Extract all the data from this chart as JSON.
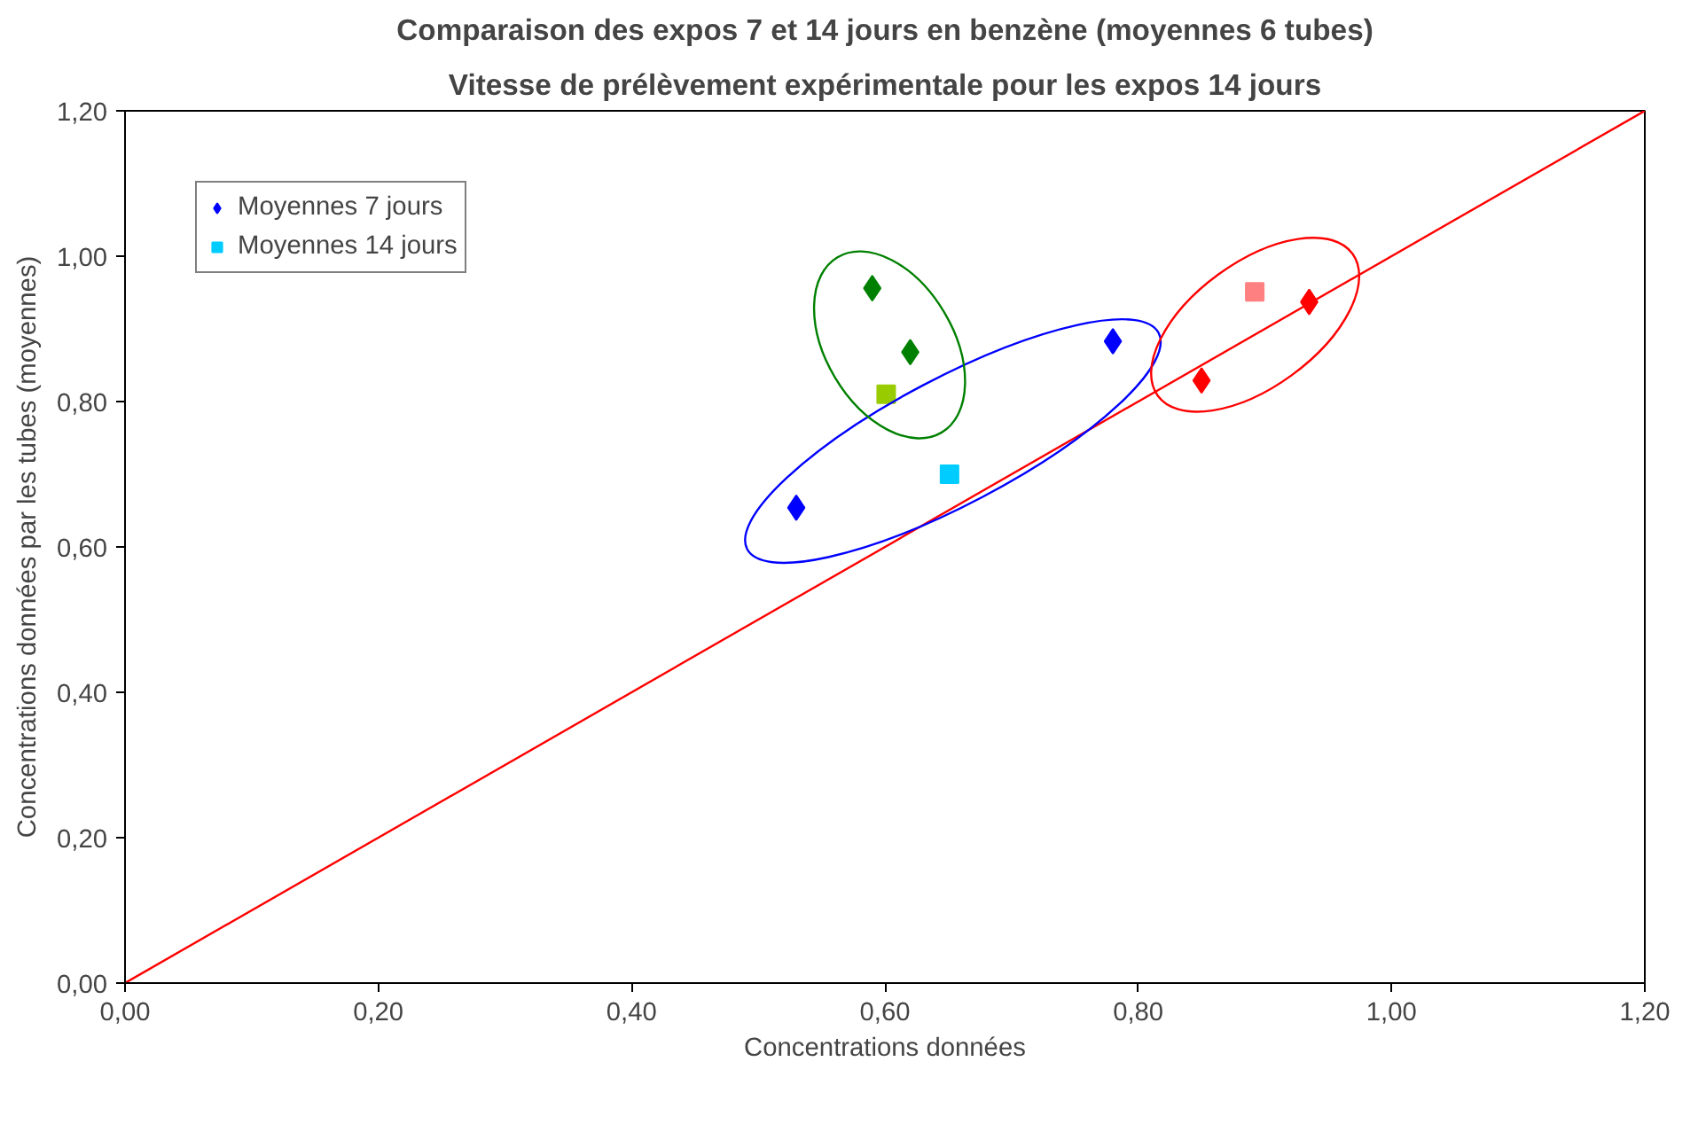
{
  "chart_data": {
    "type": "scatter",
    "title": "Comparaison des expos 7 et 14 jours en benzène (moyennes 6 tubes)",
    "subtitle": "Vitesse de prélèvement expérimentale pour les expos 14 jours",
    "xlabel": "Concentrations données",
    "ylabel": "Concentrations données par les tubes (moyennes)",
    "xlim": [
      0,
      1.2
    ],
    "ylim": [
      0,
      1.2
    ],
    "xticks": [
      {
        "value": 0,
        "label": "0,00"
      },
      {
        "value": 0.2,
        "label": "0,20"
      },
      {
        "value": 0.4,
        "label": "0,40"
      },
      {
        "value": 0.6,
        "label": "0,60"
      },
      {
        "value": 0.8,
        "label": "0,80"
      },
      {
        "value": 1.0,
        "label": "1,00"
      },
      {
        "value": 1.2,
        "label": "1,20"
      }
    ],
    "yticks": [
      {
        "value": 0,
        "label": "0,00"
      },
      {
        "value": 0.2,
        "label": "0,20"
      },
      {
        "value": 0.4,
        "label": "0,40"
      },
      {
        "value": 0.6,
        "label": "0,60"
      },
      {
        "value": 0.8,
        "label": "0,80"
      },
      {
        "value": 1.0,
        "label": "1,00"
      },
      {
        "value": 1.2,
        "label": "1,20"
      }
    ],
    "grid": false,
    "legend": "top left",
    "series": [
      {
        "name": "Moyennes 7 jours",
        "marker": "diamond",
        "x": [
          0.53,
          0.78,
          0.59,
          0.62,
          0.85,
          0.935
        ],
        "values": [
          0.654,
          0.883,
          0.956,
          0.868,
          0.829,
          0.937
        ],
        "colors": [
          "#0000ff",
          "#0000ff",
          "#008000",
          "#008000",
          "#ff0000",
          "#ff0000"
        ]
      },
      {
        "name": "Moyennes 14 jours",
        "marker": "square",
        "x": [
          0.651,
          0.601,
          0.892
        ],
        "values": [
          0.7,
          0.81,
          0.951
        ],
        "colors": [
          "#00ccff",
          "#99cc00",
          "#ff8080"
        ]
      },
      {
        "type": "line",
        "color": "#ff0000",
        "x": [
          0,
          1.2
        ],
        "values": [
          0,
          1.2
        ]
      }
    ]
  }
}
